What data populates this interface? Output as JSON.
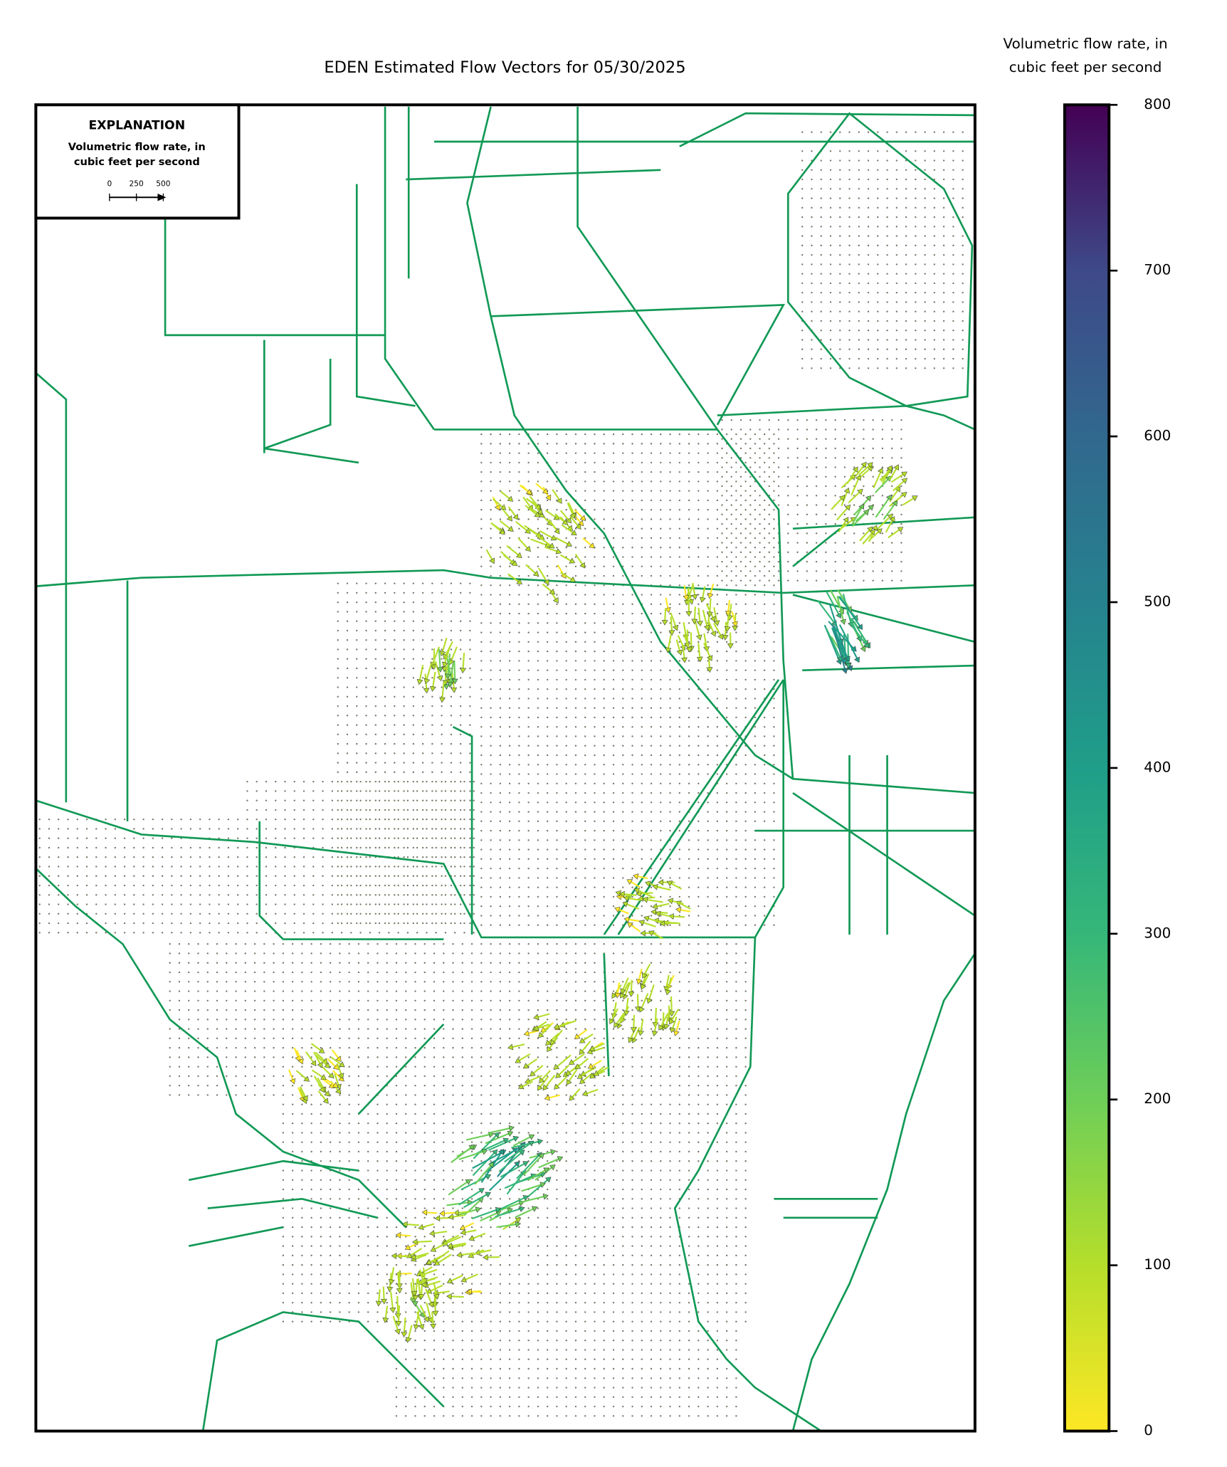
{
  "title": "EDEN Estimated Flow Vectors for 05/30/2025",
  "colorbar": {
    "label_lines": [
      "Volumetric flow rate, in",
      "cubic feet per second"
    ],
    "lim": [
      0,
      800
    ],
    "ticks": [
      0,
      100,
      200,
      300,
      400,
      500,
      600,
      700,
      800
    ]
  },
  "explanation": {
    "title": "EXPLANATION",
    "lines": [
      "Volumetric flow rate, in",
      "cubic feet per second"
    ],
    "scale_ticks": [
      0,
      250,
      500
    ]
  }
}
